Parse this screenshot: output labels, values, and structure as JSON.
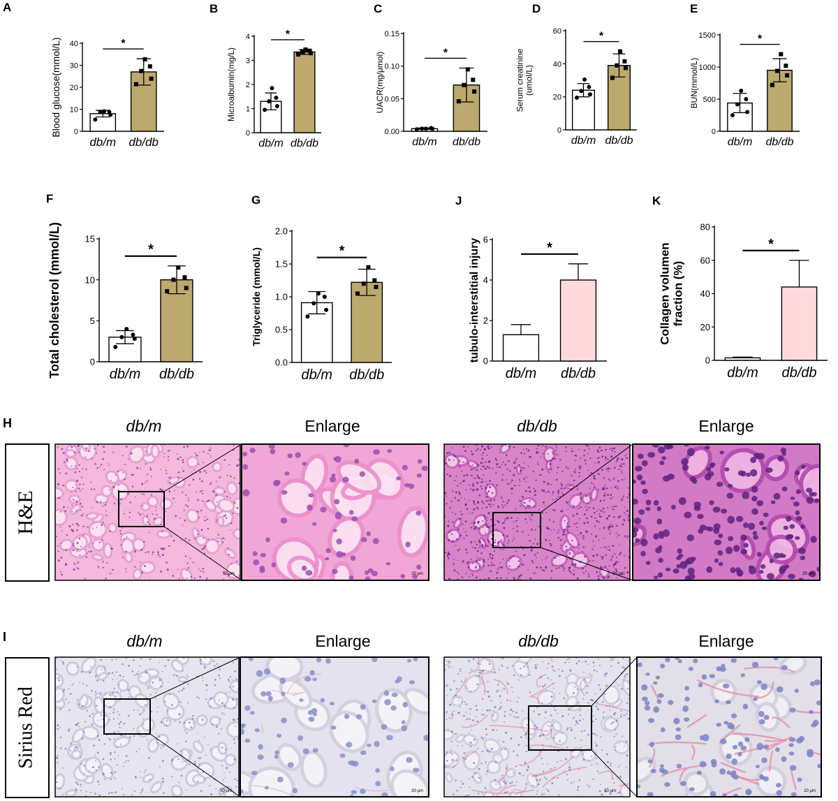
{
  "charts": [
    {
      "letter": "A",
      "type": "bar",
      "categories": [
        "db/m",
        "db/db"
      ],
      "ylabel": "Blood glucose(mmol/L)",
      "ylim": [
        0,
        40
      ],
      "yticks": [
        0,
        10,
        20,
        30,
        40
      ],
      "values": [
        8,
        27
      ],
      "sd": [
        1.5,
        6
      ],
      "points": [
        [
          5.3,
          7.5,
          8.8,
          8.9,
          9.1
        ],
        [
          21.4,
          23.9,
          27.4,
          29.5,
          32.7
        ]
      ],
      "markers": [
        "circle",
        "square"
      ],
      "colors": [
        "#ffffff",
        "#bba96e"
      ],
      "significance": "*"
    },
    {
      "letter": "B",
      "type": "bar",
      "categories": [
        "db/m",
        "db/db"
      ],
      "ylabel": "Microalbumin(mg/L)",
      "ylim": [
        0,
        4
      ],
      "yticks": [
        0,
        1,
        2,
        3,
        4
      ],
      "values": [
        1.3,
        3.35
      ],
      "sd": [
        0.35,
        0.1
      ],
      "points": [
        [
          0.95,
          1.1,
          1.3,
          1.45,
          1.85
        ],
        [
          3.25,
          3.3,
          3.35,
          3.4,
          3.45
        ]
      ],
      "markers": [
        "circle",
        "square"
      ],
      "colors": [
        "#ffffff",
        "#bba96e"
      ],
      "significance": "*"
    },
    {
      "letter": "C",
      "type": "bar",
      "categories": [
        "db/m",
        "db/db"
      ],
      "ylabel": "UACR(mg/μmol)",
      "ylim": [
        0,
        0.15
      ],
      "yticks": [
        "0.00",
        "0.05",
        "0.10",
        "0.15"
      ],
      "values": [
        0.004,
        0.071
      ],
      "sd": [
        0.001,
        0.026
      ],
      "points": [
        [
          0.003,
          0.004,
          0.004,
          0.005,
          0.004
        ],
        [
          0.046,
          0.061,
          0.071,
          0.079,
          0.095
        ]
      ],
      "markers": [
        "circle",
        "square"
      ],
      "colors": [
        "#ffffff",
        "#bba96e"
      ],
      "significance": "*"
    },
    {
      "letter": "D",
      "type": "bar",
      "categories": [
        "db/m",
        "db/db"
      ],
      "ylabel": "Serum creatinine (umol/L)",
      "ylabel_lines": [
        "Serum creatinine",
        "(umol/L)"
      ],
      "ylim": [
        0,
        60
      ],
      "yticks": [
        0,
        20,
        40,
        60
      ],
      "values": [
        24,
        39
      ],
      "sd": [
        4,
        7
      ],
      "points": [
        [
          19.5,
          21.5,
          23.5,
          26,
          30.5
        ],
        [
          31.5,
          37.5,
          39,
          41.5,
          47.5
        ]
      ],
      "markers": [
        "circle",
        "square"
      ],
      "colors": [
        "#ffffff",
        "#bba96e"
      ],
      "significance": "*"
    },
    {
      "letter": "E",
      "type": "bar",
      "categories": [
        "db/m",
        "db/db"
      ],
      "ylabel": "BUN(mmol/L)",
      "ylim": [
        0,
        1500
      ],
      "yticks": [
        0,
        500,
        1000,
        1500
      ],
      "values": [
        440,
        950
      ],
      "sd": [
        150,
        180
      ],
      "points": [
        [
          250,
          300,
          420,
          500,
          630
        ],
        [
          720,
          870,
          940,
          1020,
          1200
        ]
      ],
      "markers": [
        "circle",
        "square"
      ],
      "colors": [
        "#ffffff",
        "#bba96e"
      ],
      "significance": "*"
    },
    {
      "letter": "F",
      "type": "bar",
      "categories": [
        "db/m",
        "db/db"
      ],
      "ylabel": "Total cholesterol (mmol/L)",
      "ylim": [
        0,
        15
      ],
      "yticks": [
        0,
        5,
        10,
        15
      ],
      "values": [
        3,
        10
      ],
      "sd": [
        0.8,
        1.7
      ],
      "points": [
        [
          1.8,
          2.8,
          3.0,
          3.3,
          4.0
        ],
        [
          8.6,
          9.0,
          10.0,
          10.3,
          11.5
        ]
      ],
      "markers": [
        "circle",
        "square"
      ],
      "colors": [
        "#ffffff",
        "#bba96e"
      ],
      "significance": "*"
    },
    {
      "letter": "G",
      "type": "bar",
      "categories": [
        "db/m",
        "db/db"
      ],
      "ylabel": "Triglyceride (mmol/L)",
      "ylim": [
        0,
        2
      ],
      "yticks": [
        "0.0",
        "0.5",
        "1.0",
        "1.5",
        "2.0"
      ],
      "values": [
        0.91,
        1.22
      ],
      "sd": [
        0.17,
        0.2
      ],
      "points": [
        [
          0.7,
          0.8,
          0.9,
          1.0,
          1.05
        ],
        [
          1.05,
          1.15,
          1.2,
          1.25,
          1.45
        ]
      ],
      "markers": [
        "circle",
        "square"
      ],
      "colors": [
        "#ffffff",
        "#bba96e"
      ],
      "significance": "*"
    },
    {
      "letter": "J",
      "type": "bar",
      "categories": [
        "db/m",
        "db/db"
      ],
      "ylabel": "tubulo-interstitial injury",
      "ylim": [
        0,
        6
      ],
      "yticks": [
        0,
        2,
        4,
        6
      ],
      "values": [
        1.3,
        4.0
      ],
      "sd": [
        0.5,
        0.8
      ],
      "points": [],
      "markers": [],
      "colors": [
        "#ffffff",
        "#ffd9dc"
      ],
      "significance": "*"
    },
    {
      "letter": "K",
      "type": "bar",
      "categories": [
        "db/m",
        "db/db"
      ],
      "ylabel": "Collagen volumen fraction (%)",
      "ylabel_lines": [
        "Collagen volumen",
        "fraction (%)"
      ],
      "ylim": [
        0,
        80
      ],
      "yticks": [
        0,
        20,
        40,
        60,
        80
      ],
      "values": [
        1.5,
        44
      ],
      "sd": [
        0.5,
        16
      ],
      "points": [],
      "markers": [],
      "colors": [
        "#ffffff",
        "#ffd9dc"
      ],
      "significance": "*"
    }
  ],
  "panels": {
    "H": {
      "letter": "H",
      "stain": "H&E",
      "headers": [
        "db/m",
        "Enlarge",
        "db/db",
        "Enlarge"
      ],
      "scale_bars": [
        "50 μm",
        "20 μm",
        "50 μm",
        "20 μm"
      ],
      "colors": {
        "base": "#f3b8dc",
        "nuclei": "#8e3a9d",
        "dense": "#a04ab0"
      }
    },
    "I": {
      "letter": "I",
      "stain": "Sirius Red",
      "headers": [
        "db/m",
        "Enlarge",
        "db/db",
        "Enlarge"
      ],
      "scale_bars": [
        "50 μm",
        "20 μm",
        "50 μm",
        "20 μm"
      ],
      "colors": {
        "base": "#e6e5ef",
        "nuclei": "#7f86c2",
        "fibers": "#e68aa6"
      }
    }
  }
}
